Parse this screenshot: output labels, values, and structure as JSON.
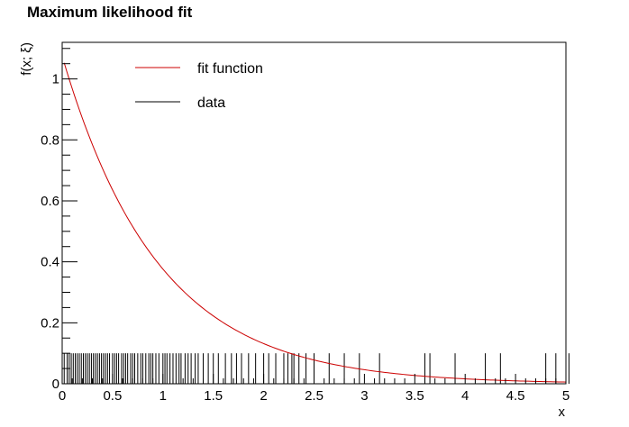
{
  "chart_data": {
    "type": "line",
    "title": "Maximum likelihood fit",
    "xlabel": "x",
    "ylabel": "f(x; ξ)",
    "xlim": [
      0,
      5
    ],
    "ylim": [
      0,
      1.12
    ],
    "x_ticks": [
      "0",
      "0.5",
      "1",
      "1.5",
      "2",
      "2.5",
      "3",
      "3.5",
      "4",
      "4.5",
      "5"
    ],
    "y_ticks": [
      "0",
      "0.2",
      "0.4",
      "0.6",
      "0.8",
      "1"
    ],
    "legend": {
      "placement": "top-left",
      "entries": [
        {
          "label": "fit function",
          "color": "#cc0000"
        },
        {
          "label": "data",
          "color": "#000000"
        }
      ]
    },
    "series": [
      {
        "name": "fit function",
        "color": "#cc0000",
        "function": "exponential",
        "amplitude": 1.075,
        "rate": 1.05,
        "x_range": [
          0.02,
          5
        ]
      },
      {
        "name": "data",
        "color": "#000000",
        "marker": "rug",
        "marker_height": 0.1,
        "x": [
          0.02,
          0.05,
          0.07,
          0.09,
          0.11,
          0.13,
          0.15,
          0.17,
          0.19,
          0.21,
          0.23,
          0.25,
          0.27,
          0.29,
          0.31,
          0.33,
          0.35,
          0.37,
          0.39,
          0.41,
          0.43,
          0.45,
          0.47,
          0.5,
          0.52,
          0.54,
          0.56,
          0.59,
          0.61,
          0.63,
          0.65,
          0.68,
          0.7,
          0.72,
          0.75,
          0.78,
          0.8,
          0.83,
          0.86,
          0.88,
          0.9,
          0.93,
          0.96,
          1.0,
          1.02,
          1.04,
          1.07,
          1.1,
          1.13,
          1.16,
          1.18,
          1.22,
          1.25,
          1.28,
          1.32,
          1.35,
          1.4,
          1.45,
          1.5,
          1.55,
          1.62,
          1.68,
          1.73,
          1.78,
          1.85,
          1.92,
          2.0,
          2.05,
          2.12,
          2.2,
          2.24,
          2.28,
          2.3,
          2.35,
          2.42,
          2.5,
          2.65,
          2.8,
          2.95,
          3.15,
          3.6,
          3.65,
          3.9,
          4.2,
          4.35,
          4.8,
          4.9,
          5.03
        ]
      }
    ]
  }
}
